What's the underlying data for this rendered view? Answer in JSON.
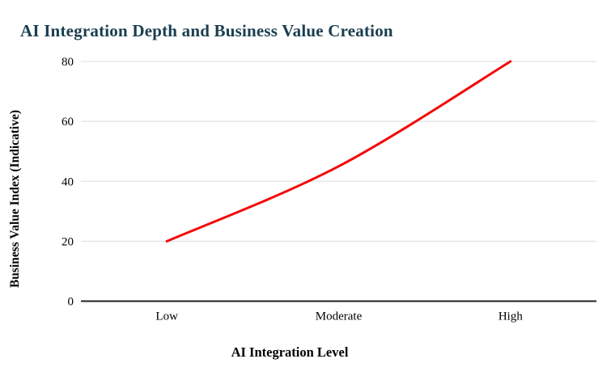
{
  "chart_data": {
    "type": "line",
    "title": "AI Integration Depth and Business Value Creation",
    "xlabel": "AI Integration Level",
    "ylabel": "Business Value Index (Indicative)",
    "categories": [
      "Low",
      "Moderate",
      "High"
    ],
    "values": [
      20,
      45,
      80
    ],
    "ylim": [
      0,
      80
    ],
    "yticks": [
      0,
      20,
      40,
      60,
      80
    ],
    "grid": "horizontal-only",
    "legend_position": "none",
    "smooth": true,
    "colors": {
      "line": "#f40909",
      "title": "#1a3e50",
      "gridline": "#e2e2e2",
      "axis_baseline": "#212121",
      "tick_text": "#000000",
      "background": "#ffffff"
    }
  }
}
